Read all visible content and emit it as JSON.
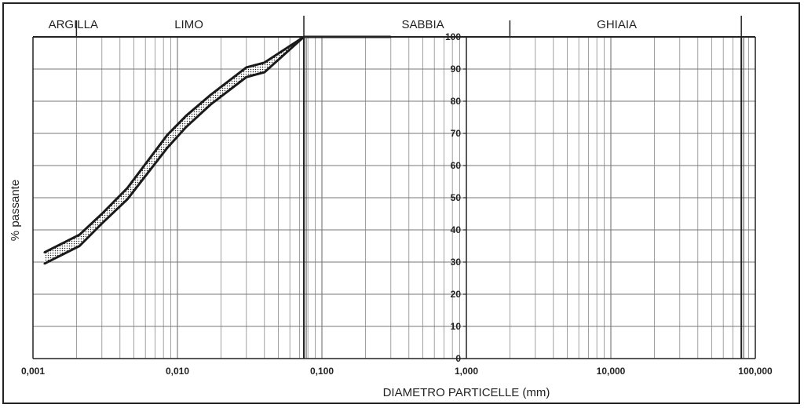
{
  "chart_data": {
    "type": "line",
    "xscale": "log",
    "xlim": [
      0.001,
      100
    ],
    "ylim": [
      0,
      100
    ],
    "xlabel": "DIAMETRO PARTICELLE (mm)",
    "ylabel": "% passante",
    "x_tick_labels": [
      {
        "value": 0.001,
        "label": "0,001"
      },
      {
        "value": 0.01,
        "label": "0,010"
      },
      {
        "value": 0.1,
        "label": "0,100"
      },
      {
        "value": 1,
        "label": "1,000"
      },
      {
        "value": 10,
        "label": "10,000"
      },
      {
        "value": 100,
        "label": "100,000"
      }
    ],
    "y_tick_labels": [
      {
        "value": 0,
        "label": "0"
      },
      {
        "value": 10,
        "label": "10"
      },
      {
        "value": 20,
        "label": "20"
      },
      {
        "value": 30,
        "label": "30"
      },
      {
        "value": 40,
        "label": "40"
      },
      {
        "value": 50,
        "label": "50"
      },
      {
        "value": 60,
        "label": "60"
      },
      {
        "value": 70,
        "label": "70"
      },
      {
        "value": 80,
        "label": "80"
      },
      {
        "value": 90,
        "label": "90"
      },
      {
        "value": 100,
        "label": "100"
      }
    ],
    "y_tick_axis_x": 1,
    "grid": true,
    "soil_classes": [
      {
        "label": "ARGILLA",
        "label_x": 0.0019
      },
      {
        "label": "LIMO",
        "label_x": 0.012
      },
      {
        "label": "SABBIA",
        "label_x": 0.5
      },
      {
        "label": "GHIAIA",
        "label_x": 11
      }
    ],
    "class_boundaries": [
      0.002,
      0.075,
      2,
      80
    ],
    "series": [
      {
        "values_x": [
          0.0012,
          0.0021,
          0.003,
          0.0045,
          0.0085,
          0.0115,
          0.017,
          0.03,
          0.04,
          0.075,
          0.095,
          0.16,
          0.3
        ],
        "values_y": [
          33,
          38.5,
          45,
          53,
          69.5,
          75.5,
          82,
          90.5,
          92,
          100,
          100,
          100,
          100
        ]
      },
      {
        "values_x": [
          0.0012,
          0.0021,
          0.003,
          0.0045,
          0.0085,
          0.0115,
          0.017,
          0.03,
          0.04,
          0.075
        ],
        "values_y": [
          29.5,
          35,
          42,
          49.5,
          65.5,
          72,
          79,
          87.5,
          89,
          100
        ]
      }
    ]
  }
}
